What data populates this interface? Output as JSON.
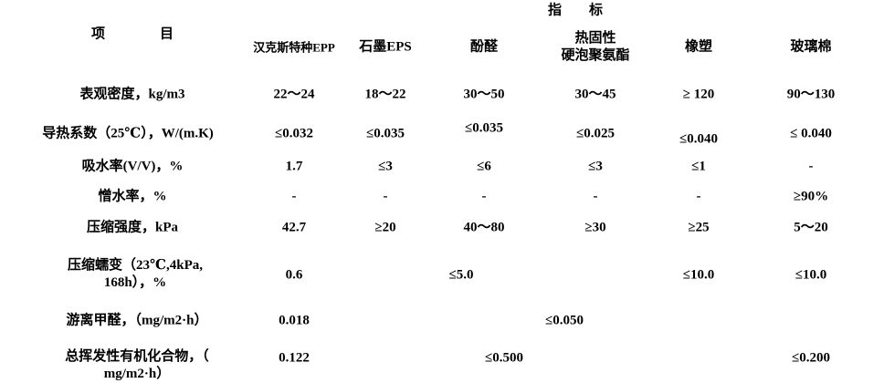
{
  "table": {
    "group_header": "指　　标",
    "item_header": "项　　　　目",
    "columns": [
      "汉克斯特种EPP",
      "石墨EPS",
      "酚醛",
      "热固性\n硬泡聚氨酯",
      "橡塑",
      "玻璃棉"
    ],
    "rows": [
      {
        "label": "表观密度，kg/m3",
        "values": [
          "22～24",
          "18～22",
          "30～50",
          "30～45",
          "≥ 120",
          "90～130"
        ]
      },
      {
        "label": "导热系数（25℃），W/(m.K)",
        "values": [
          "≤0.032",
          "≤0.035",
          "≤0.035",
          "≤0.025",
          "≤0.040",
          "≤ 0.040"
        ]
      },
      {
        "label": "吸水率(V/V)，%",
        "values": [
          "1.7",
          "≤3",
          "≤6",
          "≤3",
          "≤1",
          "-"
        ]
      },
      {
        "label": "憎水率，%",
        "values": [
          "-",
          "-",
          "-",
          "-",
          "-",
          "≥90%"
        ]
      },
      {
        "label": "压缩强度，kPa",
        "values": [
          "42.7",
          "≥20",
          "40～80",
          "≥30",
          "≥25",
          "5～20"
        ]
      },
      {
        "label": "压缩蠕变（23℃,4kPa,\n168h），%",
        "values": [
          "0.6",
          "≤5.0",
          "≤10.0",
          "≤10.0"
        ]
      },
      {
        "label": "游离甲醛，（mg/m2·h）",
        "values": [
          "0.018",
          "≤0.050"
        ]
      },
      {
        "label": "总挥发性有机化合物，（\nmg/m2·h）",
        "values": [
          "0.122",
          "≤0.500",
          "≤0.200"
        ]
      }
    ]
  }
}
